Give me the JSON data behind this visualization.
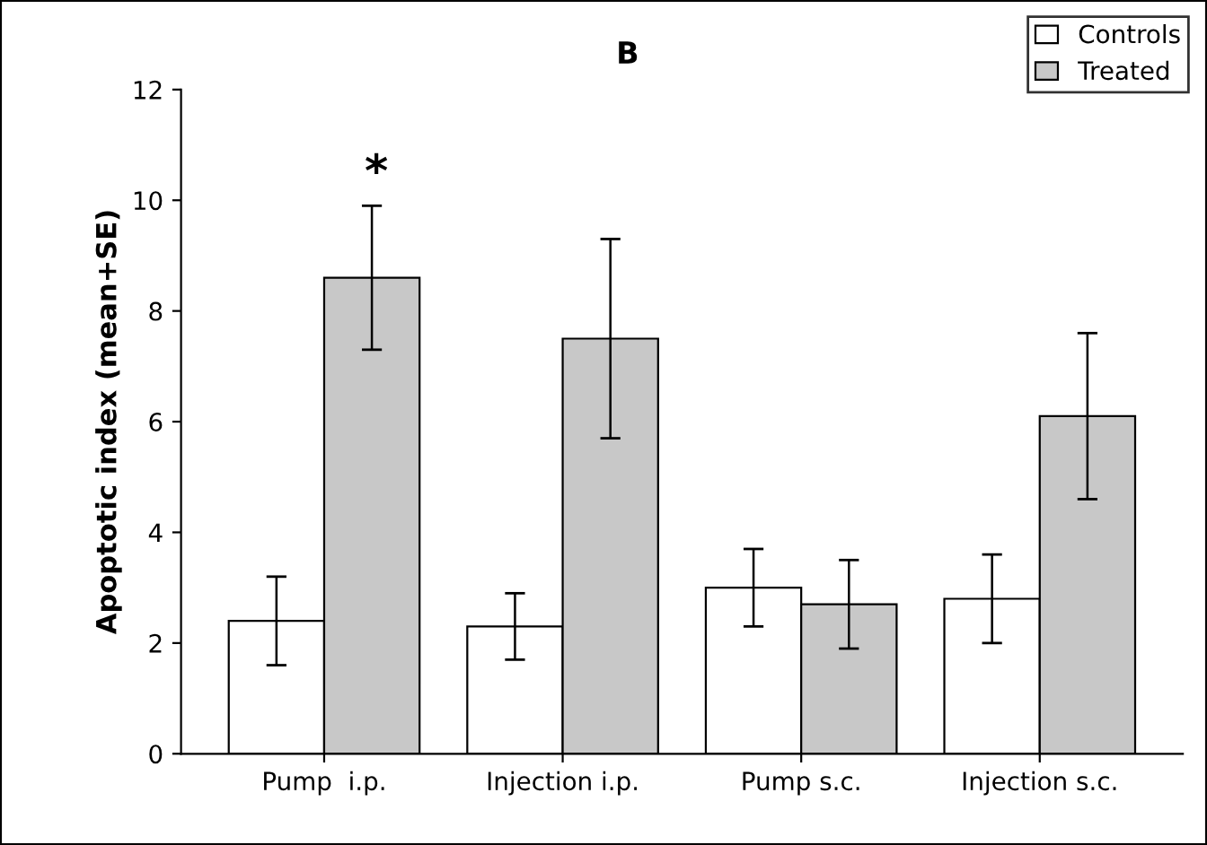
{
  "chart_data": {
    "type": "bar",
    "title": "B",
    "ylabel": "Apoptotic index (mean+SE)",
    "categories": [
      "Pump  i.p.",
      "Injection i.p.",
      "Pump s.c.",
      "Injection s.c."
    ],
    "series": [
      {
        "name": "Controls",
        "color": "#ffffff",
        "values": [
          2.4,
          2.3,
          3.0,
          2.8
        ],
        "errors": [
          0.8,
          0.6,
          0.7,
          0.8
        ]
      },
      {
        "name": "Treated",
        "color": "#c8c8c8",
        "values": [
          8.6,
          7.5,
          2.7,
          6.1
        ],
        "errors": [
          1.3,
          1.8,
          0.8,
          1.5
        ]
      }
    ],
    "ylim": [
      0,
      12
    ],
    "yticks": [
      0,
      2,
      4,
      6,
      8,
      10,
      12
    ],
    "grid": false,
    "legend": "top right",
    "annotations": [
      "*"
    ]
  }
}
